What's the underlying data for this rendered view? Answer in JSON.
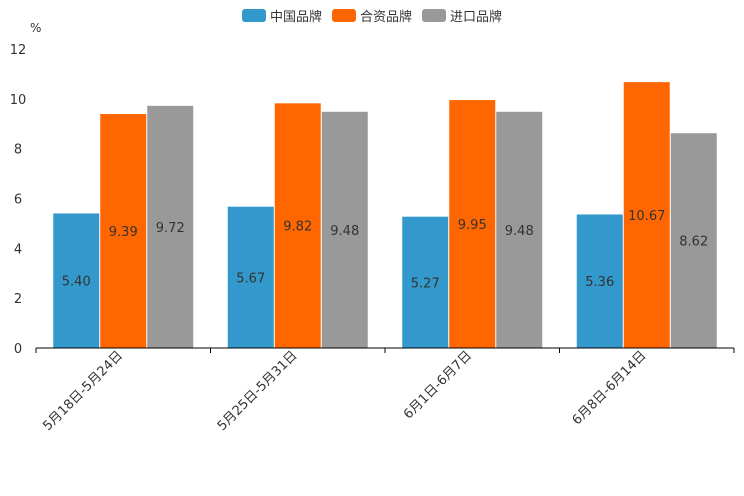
{
  "chart_data": {
    "type": "bar",
    "unit": "%",
    "categories": [
      "5月18日-5月24日",
      "5月25日-5月31日",
      "6月1日-6月7日",
      "6月8日-6月14日"
    ],
    "series": [
      {
        "name": "中国品牌",
        "color": "#3399cc",
        "values": [
          5.4,
          5.67,
          5.27,
          5.36
        ],
        "labels": [
          "5.40",
          "5.67",
          "5.27",
          "5.36"
        ]
      },
      {
        "name": "合资品牌",
        "color": "#ff6600",
        "values": [
          9.39,
          9.82,
          9.95,
          10.67
        ],
        "labels": [
          "9.39",
          "9.82",
          "9.95",
          "10.67"
        ]
      },
      {
        "name": "进口品牌",
        "color": "#999999",
        "values": [
          9.72,
          9.48,
          9.48,
          8.62
        ],
        "labels": [
          "9.72",
          "9.48",
          "9.48",
          "8.62"
        ]
      }
    ],
    "ylim": [
      0,
      12
    ],
    "yticks": [
      0,
      2,
      4,
      6,
      8,
      10,
      12
    ],
    "grid": false,
    "legend": "top-center",
    "xlabel": "",
    "ylabel": ""
  }
}
